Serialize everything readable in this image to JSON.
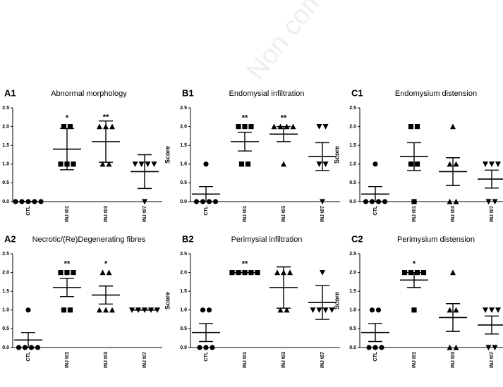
{
  "watermark": "Non commercial us",
  "chart_data": [
    {
      "type": "dot",
      "panel": "A1",
      "title": "Abnormal morphology",
      "categories": [
        "CTL",
        "INJ t01",
        "INJ t03",
        "INJ t07"
      ],
      "markers": [
        "circle",
        "square",
        "triangle",
        "triangle-down"
      ],
      "points": [
        [
          0,
          0,
          0,
          0,
          0
        ],
        [
          2,
          2,
          1,
          1,
          1
        ],
        [
          2,
          2,
          2,
          1,
          1
        ],
        [
          1,
          1,
          1,
          1,
          0
        ]
      ],
      "means": [
        0,
        1.4,
        1.6,
        0.8
      ],
      "errors": [
        0,
        0.55,
        0.55,
        0.45
      ],
      "annotations": [
        null,
        "*",
        "**",
        null
      ],
      "ylim": [
        0,
        2.5
      ],
      "yticks": [
        {
          "value": 0,
          "label": "0.0"
        },
        0.5,
        {
          "value": 1,
          "label": "1.0"
        },
        1.5,
        {
          "value": 2,
          "label": "2.0"
        },
        2.5
      ],
      "color": "#000000"
    },
    {
      "type": "dot",
      "panel": "B1",
      "title": "Endomysial infiltration",
      "ylabel": "Score",
      "categories": [
        "CTL",
        "INJ t01",
        "INJ t03",
        "INJ t07"
      ],
      "markers": [
        "circle",
        "square",
        "triangle",
        "triangle-down"
      ],
      "points": [
        [
          1,
          0,
          0,
          0,
          0
        ],
        [
          2,
          2,
          2,
          1,
          1
        ],
        [
          2,
          2,
          2,
          2,
          1
        ],
        [
          2,
          2,
          1,
          1,
          0
        ]
      ],
      "means": [
        0.2,
        1.6,
        1.8,
        1.2
      ],
      "errors": [
        0.2,
        0.25,
        0.2,
        0.37
      ],
      "annotations": [
        null,
        "**",
        "**",
        null
      ],
      "ylim": [
        0,
        2.5
      ],
      "yticks": [
        {
          "value": 0,
          "label": "0.0"
        },
        0.5,
        {
          "value": 1,
          "label": "1.0"
        },
        1.5,
        {
          "value": 2,
          "label": "2.0"
        },
        2.5
      ],
      "color": "#000000"
    },
    {
      "type": "dot",
      "panel": "C1",
      "title": "Endomysium distension",
      "ylabel": "Score",
      "categories": [
        "CTL",
        "INJ t01",
        "INJ t03",
        "INJ t07"
      ],
      "markers": [
        "circle",
        "square",
        "triangle",
        "triangle-down"
      ],
      "points": [
        [
          1,
          0,
          0,
          0,
          0
        ],
        [
          2,
          2,
          1,
          1,
          0
        ],
        [
          2,
          1,
          1,
          0,
          0
        ],
        [
          1,
          1,
          1,
          0,
          0
        ]
      ],
      "means": [
        0.2,
        1.2,
        0.8,
        0.6
      ],
      "errors": [
        0.2,
        0.37,
        0.37,
        0.24
      ],
      "annotations": [
        null,
        null,
        null,
        null
      ],
      "ylim": [
        0,
        2.5
      ],
      "yticks": [
        {
          "value": 0,
          "label": "0.0"
        },
        0.5,
        {
          "value": 1,
          "label": "1.0"
        },
        1.5,
        {
          "value": 2,
          "label": "2.0"
        },
        2.5
      ],
      "color": "#000000"
    },
    {
      "type": "dot",
      "panel": "A2",
      "title": "Necrotic/(Re)Degenerating fibres",
      "categories": [
        "CTL",
        "INJ t01",
        "INJ t03",
        "INJ t07"
      ],
      "markers": [
        "circle",
        "square",
        "triangle",
        "triangle-down"
      ],
      "points": [
        [
          1,
          0,
          0,
          0,
          0
        ],
        [
          2,
          2,
          2,
          1,
          1
        ],
        [
          2,
          2,
          1,
          1,
          1
        ],
        [
          1,
          1,
          1,
          1,
          1
        ]
      ],
      "means": [
        0.2,
        1.6,
        1.4,
        1
      ],
      "errors": [
        0.2,
        0.24,
        0.24,
        0
      ],
      "annotations": [
        null,
        "**",
        "*",
        null
      ],
      "ylim": [
        0,
        2.5
      ],
      "yticks": [
        {
          "value": 0,
          "label": "0.0"
        },
        0.5,
        {
          "value": 1,
          "label": "1.0"
        },
        1.5,
        {
          "value": 2,
          "label": "2.0"
        },
        2.5
      ],
      "color": "#000000"
    },
    {
      "type": "dot",
      "panel": "B2",
      "title": "Perimysial infiltration",
      "ylabel": "Score",
      "categories": [
        "CTL",
        "INJ t01",
        "INJ t03",
        "INJ t07"
      ],
      "markers": [
        "circle",
        "square",
        "triangle",
        "triangle-down"
      ],
      "points": [
        [
          1,
          1,
          0,
          0,
          0
        ],
        [
          2,
          2,
          2,
          2,
          2
        ],
        [
          2,
          2,
          2,
          1,
          1
        ],
        [
          2,
          1,
          1,
          1,
          1
        ]
      ],
      "means": [
        0.4,
        2,
        1.6,
        1.2
      ],
      "errors": [
        0.24,
        0,
        0.55,
        0.45
      ],
      "annotations": [
        null,
        "**",
        null,
        null
      ],
      "ylim": [
        0,
        2.5
      ],
      "yticks": [
        {
          "value": 0,
          "label": "0.0"
        },
        0.5,
        {
          "value": 1,
          "label": "1.0"
        },
        1.5,
        {
          "value": 2,
          "label": "2.0"
        },
        2.5
      ],
      "color": "#000000"
    },
    {
      "type": "dot",
      "panel": "C2",
      "title": "Perimysium distension",
      "ylabel": "Score",
      "categories": [
        "CTL",
        "INJ t01",
        "INJ t03",
        "INJ t07"
      ],
      "markers": [
        "circle",
        "square",
        "triangle",
        "triangle-down"
      ],
      "points": [
        [
          1,
          1,
          0,
          0,
          0
        ],
        [
          2,
          2,
          2,
          2,
          1
        ],
        [
          2,
          1,
          1,
          0,
          0
        ],
        [
          1,
          1,
          1,
          0,
          0
        ]
      ],
      "means": [
        0.4,
        1.8,
        0.8,
        0.6
      ],
      "errors": [
        0.24,
        0.2,
        0.37,
        0.24
      ],
      "annotations": [
        null,
        "*",
        null,
        null
      ],
      "ylim": [
        0,
        2.5
      ],
      "yticks": [
        {
          "value": 0,
          "label": "0.0"
        },
        0.5,
        {
          "value": 1,
          "label": "1.0"
        },
        1.5,
        {
          "value": 2,
          "label": "2.0"
        },
        2.5
      ],
      "color": "#000000"
    }
  ]
}
